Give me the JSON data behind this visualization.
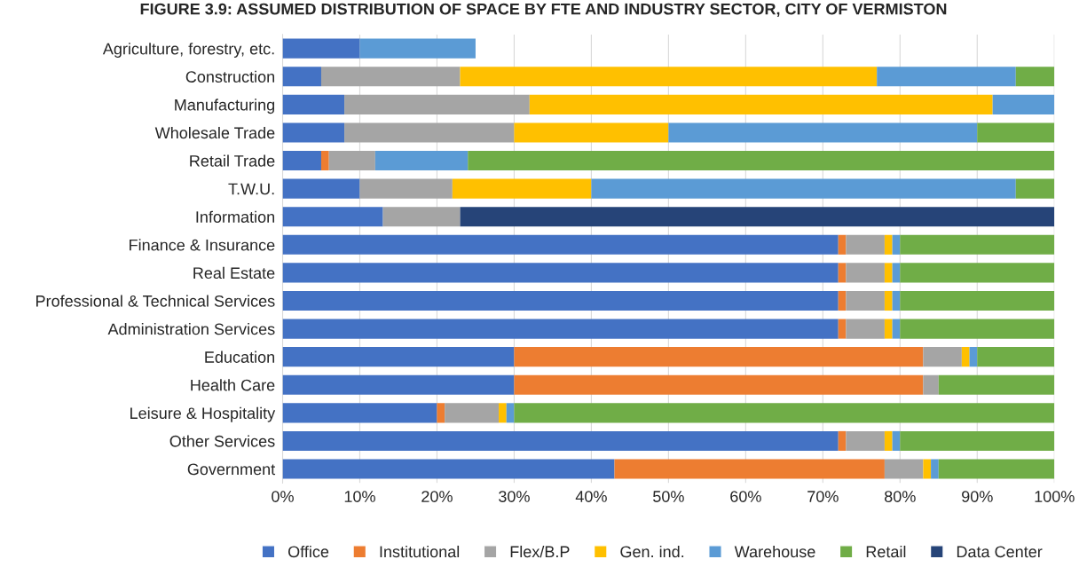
{
  "chart_data": {
    "type": "bar",
    "orientation": "horizontal",
    "stacked": true,
    "title": "FIGURE 3.9: ASSUMED DISTRIBUTION OF SPACE BY FTE AND INDUSTRY SECTOR, CITY OF VERMISTON",
    "categories": [
      "Agriculture, forestry, etc.",
      "Construction",
      "Manufacturing",
      "Wholesale Trade",
      "Retail Trade",
      "T.W.U.",
      "Information",
      "Finance & Insurance",
      "Real Estate",
      "Professional & Technical Services",
      "Administration Services",
      "Education",
      "Health Care",
      "Leisure & Hospitality",
      "Other Services",
      "Government"
    ],
    "series": [
      {
        "name": "Office",
        "color": "#4472c4",
        "values": [
          10,
          5,
          8,
          8,
          5,
          10,
          13,
          72,
          72,
          72,
          72,
          30,
          30,
          20,
          72,
          43
        ]
      },
      {
        "name": "Institutional",
        "color": "#ed7d31",
        "values": [
          0,
          0,
          0,
          0,
          1,
          0,
          0,
          1,
          1,
          1,
          1,
          53,
          53,
          1,
          1,
          35
        ]
      },
      {
        "name": "Flex/B.P",
        "color": "#a5a5a5",
        "values": [
          0,
          18,
          24,
          22,
          6,
          12,
          10,
          5,
          5,
          5,
          5,
          5,
          2,
          7,
          5,
          5
        ]
      },
      {
        "name": "Gen. ind.",
        "color": "#ffc000",
        "values": [
          0,
          54,
          60,
          20,
          0,
          18,
          0,
          1,
          1,
          1,
          1,
          1,
          0,
          1,
          1,
          1
        ]
      },
      {
        "name": "Warehouse",
        "color": "#5b9bd5",
        "values": [
          15,
          18,
          8,
          40,
          12,
          55,
          0,
          1,
          1,
          1,
          1,
          1,
          0,
          1,
          1,
          1
        ]
      },
      {
        "name": "Retail",
        "color": "#70ad47",
        "values": [
          0,
          5,
          0,
          10,
          76,
          5,
          0,
          20,
          20,
          20,
          20,
          10,
          15,
          70,
          20,
          15
        ]
      },
      {
        "name": "Data Center",
        "color": "#264478",
        "values": [
          0,
          0,
          0,
          0,
          0,
          0,
          77,
          0,
          0,
          0,
          0,
          0,
          0,
          0,
          0,
          0
        ]
      }
    ],
    "xlim": [
      0,
      100
    ],
    "xticks": [
      {
        "value": 0,
        "label": "0%"
      },
      {
        "value": 10,
        "label": "10%"
      },
      {
        "value": 20,
        "label": "20%"
      },
      {
        "value": 30,
        "label": "30%"
      },
      {
        "value": 40,
        "label": "40%"
      },
      {
        "value": 50,
        "label": "50%"
      },
      {
        "value": 60,
        "label": "60%"
      },
      {
        "value": 70,
        "label": "70%"
      },
      {
        "value": 80,
        "label": "80%"
      },
      {
        "value": 90,
        "label": "90%"
      },
      {
        "value": 100,
        "label": "100%"
      }
    ],
    "grid": "x",
    "legend": "bottom"
  }
}
